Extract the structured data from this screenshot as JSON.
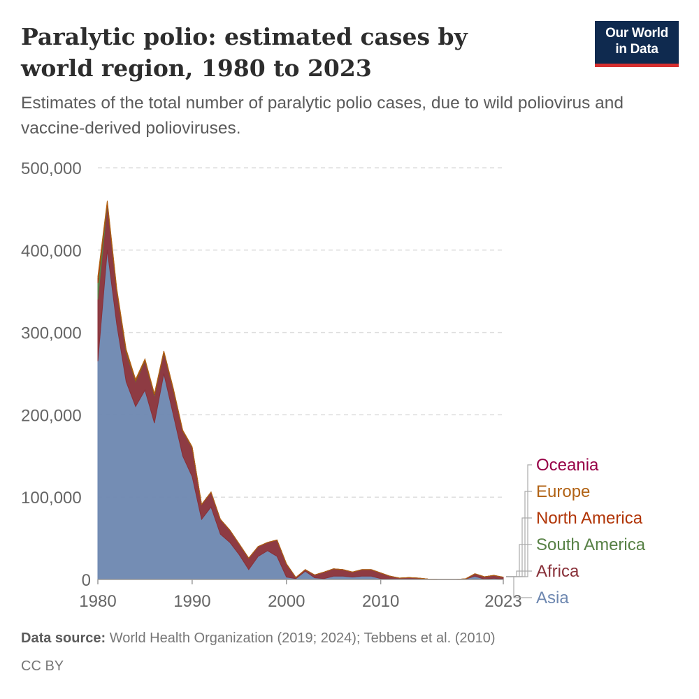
{
  "header": {
    "title": "Paralytic polio: estimated cases by world region, 1980 to 2023",
    "subtitle": "Estimates of the total number of paralytic polio cases, due to wild poliovirus and vaccine-derived polioviruses.",
    "logo_line1": "Our World",
    "logo_line2": "in Data",
    "logo_colors": {
      "background": "#0f2a4f",
      "underline": "#d62f2f"
    }
  },
  "footer": {
    "source_label": "Data source:",
    "source_text": "World Health Organization (2019; 2024); Tebbens et al. (2010)",
    "license": "CC BY"
  },
  "chart_data": {
    "type": "area",
    "stacked": true,
    "x": [
      1980,
      1981,
      1982,
      1983,
      1984,
      1985,
      1986,
      1987,
      1988,
      1989,
      1990,
      1991,
      1992,
      1993,
      1994,
      1995,
      1996,
      1997,
      1998,
      1999,
      2000,
      2001,
      2002,
      2003,
      2004,
      2005,
      2006,
      2007,
      2008,
      2009,
      2010,
      2011,
      2012,
      2013,
      2014,
      2015,
      2016,
      2017,
      2018,
      2019,
      2020,
      2021,
      2022,
      2023
    ],
    "xlim": [
      1980,
      2023
    ],
    "x_ticks": [
      "1980",
      "1990",
      "2000",
      "2010",
      "2023"
    ],
    "ylim": [
      0,
      500000
    ],
    "y_ticks": [
      "0",
      "100,000",
      "200,000",
      "300,000",
      "400,000",
      "500,000"
    ],
    "grid": true,
    "legend_position": "right",
    "series": [
      {
        "name": "Asia",
        "color": "#6d87b0",
        "values": [
          265000,
          400000,
          310000,
          240000,
          210000,
          230000,
          190000,
          250000,
          200000,
          150000,
          125000,
          73000,
          88000,
          55000,
          45000,
          30000,
          12000,
          28000,
          35000,
          28000,
          3000,
          1000,
          10000,
          2000,
          1000,
          4000,
          4000,
          3000,
          4000,
          4000,
          1000,
          500,
          200,
          300,
          400,
          100,
          100,
          50,
          50,
          500,
          4000,
          300,
          1500,
          300
        ]
      },
      {
        "name": "Africa",
        "color": "#883039",
        "values": [
          75000,
          55000,
          40000,
          35000,
          30000,
          35000,
          33000,
          25000,
          30000,
          30000,
          35000,
          18000,
          18000,
          18000,
          15000,
          13000,
          14000,
          12000,
          10000,
          20000,
          16000,
          1500,
          2000,
          3500,
          8000,
          9000,
          8000,
          6000,
          8000,
          8000,
          7000,
          3500,
          1500,
          2000,
          1300,
          400,
          100,
          50,
          50,
          300,
          3000,
          3000,
          3500,
          2500
        ]
      },
      {
        "name": "South America",
        "color": "#578145",
        "values": [
          20000,
          1500,
          1000,
          2000,
          1000,
          1000,
          1000,
          1000,
          800,
          500,
          500,
          200,
          0,
          0,
          0,
          0,
          0,
          0,
          0,
          0,
          0,
          0,
          0,
          0,
          0,
          0,
          0,
          0,
          0,
          0,
          0,
          0,
          0,
          0,
          0,
          0,
          0,
          0,
          0,
          0,
          0,
          0,
          0,
          0
        ]
      },
      {
        "name": "North America",
        "color": "#b13507",
        "values": [
          6000,
          2000,
          1500,
          1500,
          1200,
          1000,
          1000,
          1000,
          1000,
          600,
          400,
          0,
          0,
          0,
          0,
          0,
          0,
          0,
          0,
          0,
          0,
          0,
          0,
          0,
          0,
          0,
          0,
          0,
          0,
          0,
          0,
          0,
          0,
          0,
          0,
          0,
          0,
          0,
          0,
          0,
          0,
          0,
          0,
          0
        ]
      },
      {
        "name": "Europe",
        "color": "#b16214",
        "values": [
          2000,
          1500,
          1200,
          1000,
          900,
          800,
          600,
          600,
          500,
          400,
          400,
          0,
          0,
          0,
          0,
          0,
          0,
          0,
          0,
          0,
          0,
          0,
          0,
          0,
          0,
          0,
          0,
          0,
          0,
          0,
          0,
          0,
          0,
          0,
          0,
          0,
          0,
          0,
          0,
          0,
          0,
          0,
          0,
          0
        ]
      },
      {
        "name": "Oceania",
        "color": "#970046",
        "values": [
          0,
          0,
          0,
          0,
          0,
          0,
          0,
          0,
          0,
          0,
          0,
          0,
          0,
          0,
          0,
          0,
          0,
          0,
          0,
          0,
          0,
          0,
          0,
          0,
          0,
          0,
          0,
          0,
          0,
          0,
          0,
          0,
          0,
          0,
          0,
          0,
          0,
          0,
          0,
          0,
          0,
          0,
          0,
          0
        ]
      }
    ],
    "legend_order": [
      "Oceania",
      "Europe",
      "North America",
      "South America",
      "Africa",
      "Asia"
    ]
  }
}
